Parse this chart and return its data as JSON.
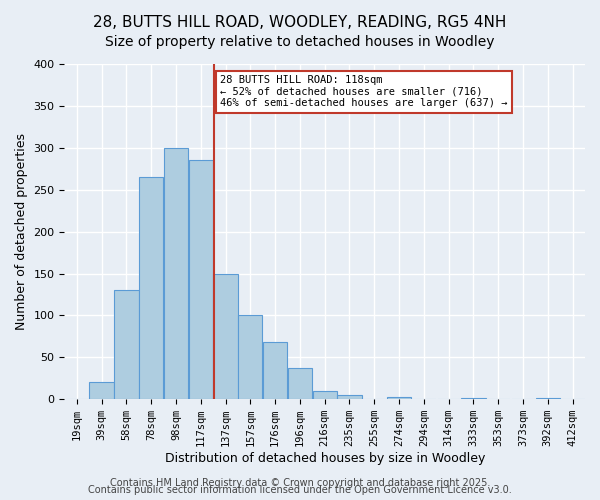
{
  "title_line1": "28, BUTTS HILL ROAD, WOODLEY, READING, RG5 4NH",
  "title_line2": "Size of property relative to detached houses in Woodley",
  "xlabel": "Distribution of detached houses by size in Woodley",
  "ylabel": "Number of detached properties",
  "footer_line1": "Contains HM Land Registry data © Crown copyright and database right 2025.",
  "footer_line2": "Contains public sector information licensed under the Open Government Licence v3.0.",
  "annotation_line1": "28 BUTTS HILL ROAD: 118sqm",
  "annotation_line2": "← 52% of detached houses are smaller (716)",
  "annotation_line3": "46% of semi-detached houses are larger (637) →",
  "categories": [
    "19sqm",
    "39sqm",
    "58sqm",
    "78sqm",
    "98sqm",
    "117sqm",
    "137sqm",
    "157sqm",
    "176sqm",
    "196sqm",
    "216sqm",
    "235sqm",
    "255sqm",
    "274sqm",
    "294sqm",
    "314sqm",
    "333sqm",
    "353sqm",
    "373sqm",
    "392sqm",
    "412sqm"
  ],
  "bar_heights": [
    0,
    20,
    130,
    265,
    300,
    285,
    150,
    100,
    68,
    37,
    10,
    5,
    0,
    3,
    0,
    0,
    2,
    0,
    0,
    1,
    0
  ],
  "bar_color": "#aecde0",
  "bar_edge_color": "#5b9bd5",
  "vline_x": 118,
  "vline_color": "#c0392b",
  "ylim": [
    0,
    400
  ],
  "xlim": [
    0,
    430
  ],
  "background_color": "#e8eef5",
  "plot_bg_color": "#e8eef5",
  "grid_color": "#ffffff",
  "annotation_box_color": "#c0392b",
  "title_fontsize": 11,
  "subtitle_fontsize": 10,
  "axis_label_fontsize": 9,
  "tick_fontsize": 7.5,
  "footer_fontsize": 7
}
